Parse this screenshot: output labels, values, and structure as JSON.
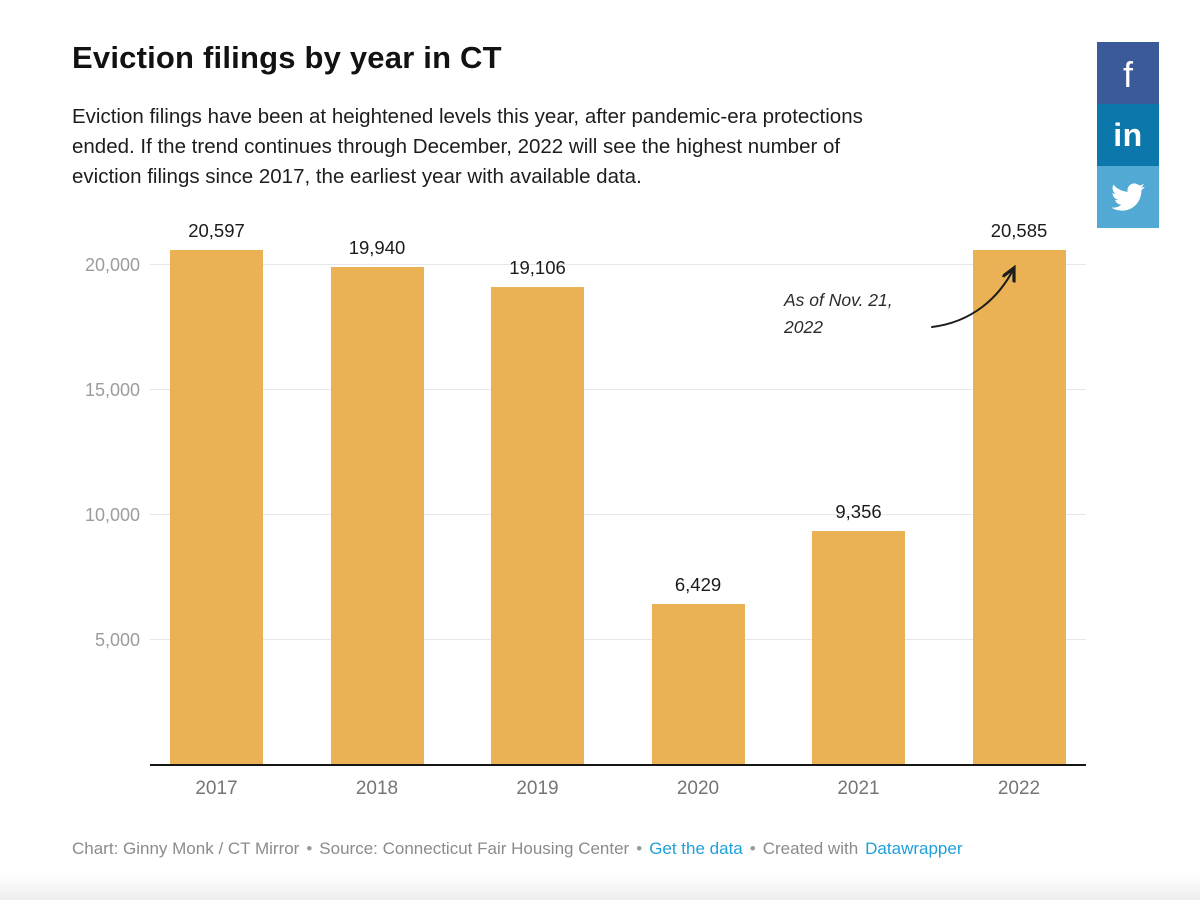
{
  "header": {
    "title": "Eviction filings by year in CT",
    "description": "Eviction filings have been at heightened levels this year, after pandemic-era protections\nended. If the trend continues through December, 2022 will see the highest number of\neviction filings since 2017, the earliest year with available data."
  },
  "share": {
    "facebook_label": "f",
    "linkedin_label": "in",
    "colors": {
      "facebook": "#3b5a99",
      "linkedin": "#0c77ab",
      "twitter": "#52a9d3"
    }
  },
  "chart_data": {
    "type": "bar",
    "title": "Eviction filings by year in CT",
    "categories": [
      "2017",
      "2018",
      "2019",
      "2020",
      "2021",
      "2022"
    ],
    "values": [
      20597,
      19940,
      19106,
      6429,
      9356,
      20585
    ],
    "value_labels": [
      "20,597",
      "19,940",
      "19,106",
      "6,429",
      "9,356",
      "20,585"
    ],
    "ylim": [
      0,
      22000
    ],
    "yticks": [
      5000,
      10000,
      15000,
      20000
    ],
    "ytick_labels": [
      "5,000",
      "10,000",
      "15,000",
      "20,000"
    ],
    "grid": true,
    "bar_color": "#eab255",
    "annotation": "As of Nov. 21,\n2022"
  },
  "footer": {
    "chart_credit": "Chart: Ginny Monk / CT Mirror",
    "separator": "•",
    "source": "Source: Connecticut Fair Housing Center",
    "get_the_data": "Get the data",
    "created_with": "Created with",
    "datawrapper": "Datawrapper",
    "link_color": "#1f9fda"
  }
}
